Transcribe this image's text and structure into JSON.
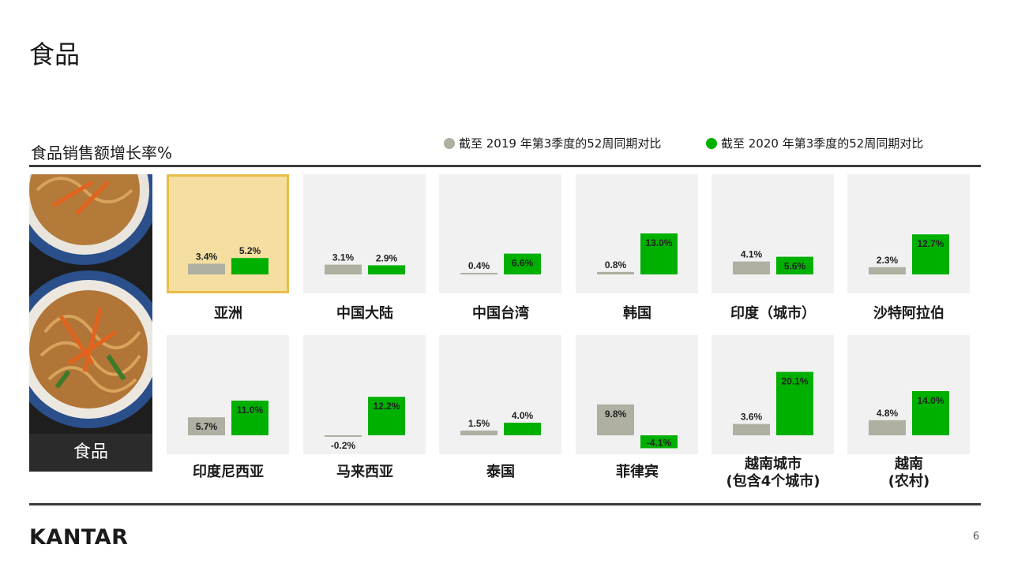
{
  "page": {
    "title": "食品",
    "page_number": "6",
    "logo": "KANTAR"
  },
  "photo": {
    "label": "食品"
  },
  "chart_data": {
    "type": "bar",
    "title": "食品销售额增长率%",
    "unit": "%",
    "series": [
      {
        "name": "截至 2019 年第3季度的52周同期对比",
        "color": "#afafa2"
      },
      {
        "name": "截至 2020 年第3季度的52周同期对比",
        "color": "#00b000"
      }
    ],
    "panels": [
      {
        "region": "亚洲",
        "values": [
          3.4,
          5.2
        ],
        "labels": [
          "3.4%",
          "5.2%"
        ],
        "highlight": true
      },
      {
        "region": "中国大陆",
        "values": [
          3.1,
          2.9
        ],
        "labels": [
          "3.1%",
          "2.9%"
        ]
      },
      {
        "region": "中国台湾",
        "values": [
          0.4,
          6.6
        ],
        "labels": [
          "0.4%",
          "6.6%"
        ]
      },
      {
        "region": "韩国",
        "values": [
          0.8,
          13.0
        ],
        "labels": [
          "0.8%",
          "13.0%"
        ]
      },
      {
        "region": "印度（城市）",
        "values": [
          4.1,
          5.6
        ],
        "labels": [
          "4.1%",
          "5.6%"
        ]
      },
      {
        "region": "沙特阿拉伯",
        "values": [
          2.3,
          12.7
        ],
        "labels": [
          "2.3%",
          "12.7%"
        ]
      },
      {
        "region": "印度尼西亚",
        "values": [
          5.7,
          11.0
        ],
        "labels": [
          "5.7%",
          "11.0%"
        ]
      },
      {
        "region": "马来西亚",
        "values": [
          -0.2,
          12.2
        ],
        "labels": [
          "-0.2%",
          "12.2%"
        ]
      },
      {
        "region": "泰国",
        "values": [
          1.5,
          4.0
        ],
        "labels": [
          "1.5%",
          "4.0%"
        ]
      },
      {
        "region": "菲律宾",
        "values": [
          9.8,
          -4.1
        ],
        "labels": [
          "9.8%",
          "-4.1%"
        ]
      },
      {
        "region": "越南城市\n(包含4个城市)",
        "values": [
          3.6,
          20.1
        ],
        "labels": [
          "3.6%",
          "20.1%"
        ]
      },
      {
        "region": "越南\n(农村)",
        "values": [
          4.8,
          14.0
        ],
        "labels": [
          "4.8%",
          "14.0%"
        ]
      }
    ]
  }
}
